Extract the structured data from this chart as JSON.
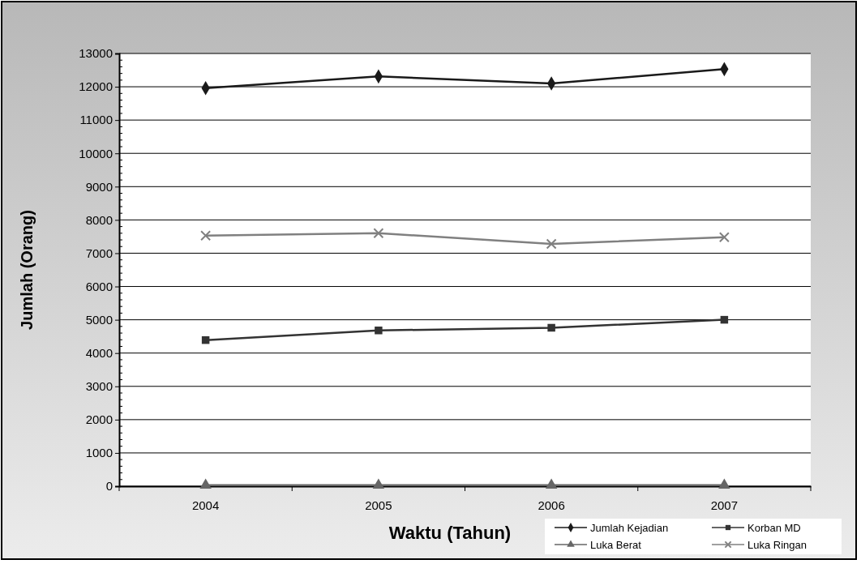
{
  "chart_data": {
    "type": "line",
    "xlabel": "Waktu (Tahun)",
    "ylabel": "Jumlah (Orang)",
    "categories": [
      "2004",
      "2005",
      "2006",
      "2007"
    ],
    "series": [
      {
        "name": "Jumlah Kejadian",
        "color": "#1a1a1a",
        "marker": "diamond",
        "values": [
          11960,
          12310,
          12100,
          12530
        ]
      },
      {
        "name": "Korban MD",
        "color": "#333333",
        "marker": "square",
        "values": [
          4390,
          4680,
          4760,
          5000
        ]
      },
      {
        "name": "Luka Berat",
        "color": "#666666",
        "marker": "triangle",
        "values": [
          30,
          30,
          30,
          30
        ]
      },
      {
        "name": "Luka Ringan",
        "color": "#808080",
        "marker": "cross",
        "values": [
          7530,
          7600,
          7280,
          7480
        ]
      }
    ],
    "ylim": [
      0,
      13000
    ],
    "yticks": [
      0,
      1000,
      2000,
      3000,
      4000,
      5000,
      6000,
      7000,
      8000,
      9000,
      10000,
      11000,
      12000,
      13000
    ],
    "grid": "y",
    "legend": "bottom right",
    "line_style": "solid"
  }
}
